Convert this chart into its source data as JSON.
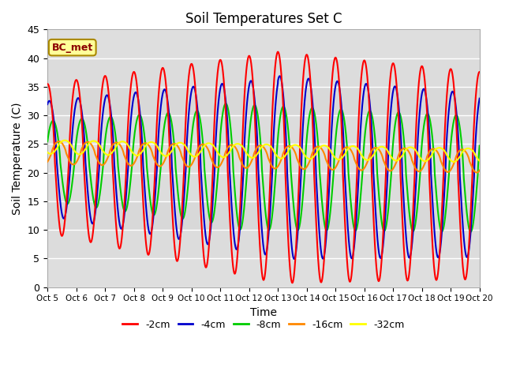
{
  "title": "Soil Temperatures Set C",
  "xlabel": "Time",
  "ylabel": "Soil Temperature (C)",
  "xlim": [
    0,
    15
  ],
  "ylim": [
    0,
    45
  ],
  "annotation": "BC_met",
  "legend": [
    "-2cm",
    "-4cm",
    "-8cm",
    "-16cm",
    "-32cm"
  ],
  "colors": [
    "#ff0000",
    "#0000cc",
    "#00cc00",
    "#ff8800",
    "#ffff00"
  ],
  "xtick_labels": [
    "Oct 5",
    "Oct 6",
    "Oct 7",
    "Oct 8",
    "Oct 9",
    "Oct 10",
    "Oct 11",
    "Oct 12",
    "Oct 13",
    "Oct 14",
    "Oct 15",
    "Oct 16",
    "Oct 17",
    "Oct 18",
    "Oct 19",
    "Oct 20"
  ],
  "background_color": "#e8e8e8",
  "plot_bg": "#dcdcdc",
  "grid_color": "#ffffff"
}
